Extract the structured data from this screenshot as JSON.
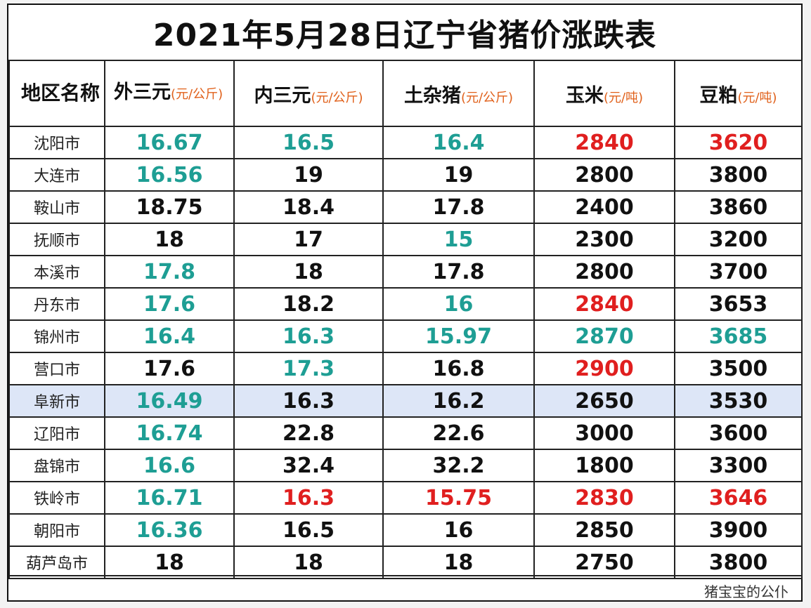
{
  "title": "2021年5月28日辽宁省猪价涨跌表",
  "headers": {
    "region": "地区名称",
    "waisanyuan": "外三元",
    "waisanyuan_unit": "(元/公斤)",
    "neisanyuan": "内三元",
    "neisanyuan_unit": "(元/公斤)",
    "tuzazhu": "土杂猪",
    "tuzazhu_unit": "(元/公斤)",
    "corn": "玉米",
    "corn_unit": "(元/吨)",
    "soymeal": "豆粕",
    "soymeal_unit": "(元/吨)"
  },
  "colors": {
    "teal": "#1e9e94",
    "red": "#e01f1f",
    "unit": "#e0601a",
    "highlight": "#dde6f7"
  },
  "rows": [
    {
      "city": "沈阳市",
      "v": [
        "16.67",
        "16.5",
        "16.4",
        "2840",
        "3620"
      ],
      "c": [
        "teal",
        "teal",
        "teal",
        "red",
        "red"
      ]
    },
    {
      "city": "大连市",
      "v": [
        "16.56",
        "19",
        "19",
        "2800",
        "3800"
      ],
      "c": [
        "teal",
        "",
        "",
        "",
        ""
      ]
    },
    {
      "city": "鞍山市",
      "v": [
        "18.75",
        "18.4",
        "17.8",
        "2400",
        "3860"
      ],
      "c": [
        "",
        "",
        "",
        "",
        ""
      ]
    },
    {
      "city": "抚顺市",
      "v": [
        "18",
        "17",
        "15",
        "2300",
        "3200"
      ],
      "c": [
        "",
        "",
        "teal",
        "",
        ""
      ]
    },
    {
      "city": "本溪市",
      "v": [
        "17.8",
        "18",
        "17.8",
        "2800",
        "3700"
      ],
      "c": [
        "teal",
        "",
        "",
        "",
        ""
      ]
    },
    {
      "city": "丹东市",
      "v": [
        "17.6",
        "18.2",
        "16",
        "2840",
        "3653"
      ],
      "c": [
        "teal",
        "",
        "teal",
        "red",
        ""
      ]
    },
    {
      "city": "锦州市",
      "v": [
        "16.4",
        "16.3",
        "15.97",
        "2870",
        "3685"
      ],
      "c": [
        "teal",
        "teal",
        "teal",
        "teal",
        "teal"
      ]
    },
    {
      "city": "营口市",
      "v": [
        "17.6",
        "17.3",
        "16.8",
        "2900",
        "3500"
      ],
      "c": [
        "",
        "teal",
        "",
        "red",
        ""
      ]
    },
    {
      "city": "阜新市",
      "v": [
        "16.49",
        "16.3",
        "16.2",
        "2650",
        "3530"
      ],
      "c": [
        "teal",
        "",
        "",
        "",
        ""
      ]
    },
    {
      "city": "辽阳市",
      "v": [
        "16.74",
        "22.8",
        "22.6",
        "3000",
        "3600"
      ],
      "c": [
        "teal",
        "",
        "",
        "",
        ""
      ]
    },
    {
      "city": "盘锦市",
      "v": [
        "16.6",
        "32.4",
        "32.2",
        "1800",
        "3300"
      ],
      "c": [
        "teal",
        "",
        "",
        "",
        ""
      ]
    },
    {
      "city": "铁岭市",
      "v": [
        "16.71",
        "16.3",
        "15.75",
        "2830",
        "3646"
      ],
      "c": [
        "teal",
        "red",
        "red",
        "red",
        "red"
      ]
    },
    {
      "city": "朝阳市",
      "v": [
        "16.36",
        "16.5",
        "16",
        "2850",
        "3900"
      ],
      "c": [
        "teal",
        "",
        "",
        "",
        ""
      ]
    },
    {
      "city": "葫芦岛市",
      "v": [
        "18",
        "18",
        "18",
        "2750",
        "3800"
      ],
      "c": [
        "",
        "",
        "",
        "",
        ""
      ]
    }
  ],
  "highlight_row": 8,
  "footer": "猪宝宝的公仆"
}
